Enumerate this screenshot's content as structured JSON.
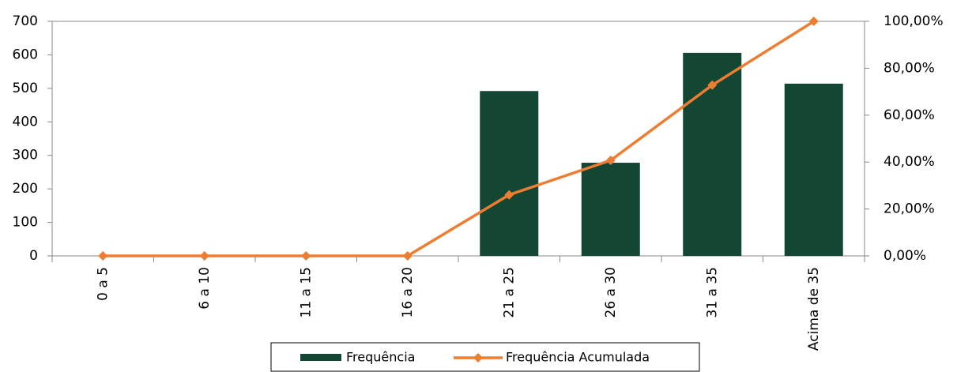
{
  "chart_data": {
    "type": "bar",
    "categories": [
      "0 a 5",
      "6 a 10",
      "11 a 15",
      "16 a 20",
      "21 a 25",
      "26 a 30",
      "31 a 35",
      "Acima de 35"
    ],
    "series": [
      {
        "name": "Frequência",
        "color": "#134734",
        "values": [
          0,
          0,
          0,
          0,
          492,
          278,
          606,
          514
        ]
      },
      {
        "name": "Frequência Acumulada",
        "color": "#ed7d31",
        "axis": "y2",
        "values": [
          0,
          0,
          0,
          0,
          26.03,
          40.74,
          72.8,
          100
        ]
      }
    ],
    "ylim": [
      0,
      700
    ],
    "yticks": [
      0,
      100,
      200,
      300,
      400,
      500,
      600,
      700
    ],
    "y2lim": [
      0,
      100
    ],
    "y2ticks": [
      {
        "value": 0,
        "label": "0,00%"
      },
      {
        "value": 20,
        "label": "20,00%"
      },
      {
        "value": 40,
        "label": "40,00%"
      },
      {
        "value": 60,
        "label": "60,00%"
      },
      {
        "value": 80,
        "label": "80,00%"
      },
      {
        "value": 100,
        "label": "100,00%"
      }
    ],
    "legend": "bottom"
  }
}
